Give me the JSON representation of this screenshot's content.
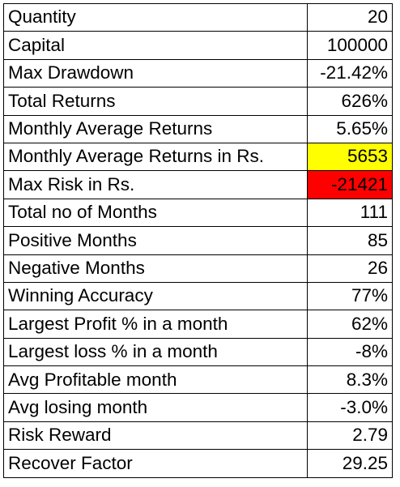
{
  "rows": [
    {
      "label": "Quantity",
      "value": "20",
      "highlight": null
    },
    {
      "label": "Capital",
      "value": "100000",
      "highlight": null
    },
    {
      "label": "Max Drawdown",
      "value": "-21.42%",
      "highlight": null
    },
    {
      "label": "Total Returns",
      "value": "626%",
      "highlight": null
    },
    {
      "label": "Monthly Average Returns",
      "value": "5.65%",
      "highlight": null
    },
    {
      "label": "Monthly Average Returns in Rs.",
      "value": "5653",
      "highlight": "#FFFF00"
    },
    {
      "label": "Max Risk in Rs.",
      "value": "-21421",
      "highlight": "#FF0000"
    },
    {
      "label": "Total no of Months",
      "value": "111",
      "highlight": null
    },
    {
      "label": "Positive Months",
      "value": "85",
      "highlight": null
    },
    {
      "label": "Negative Months",
      "value": "26",
      "highlight": null
    },
    {
      "label": "Winning Accuracy",
      "value": "77%",
      "highlight": null
    },
    {
      "label": "Largest Profit % in a month",
      "value": "62%",
      "highlight": null
    },
    {
      "label": "Largest loss % in a month",
      "value": "-8%",
      "highlight": null
    },
    {
      "label": "Avg Profitable month",
      "value": "8.3%",
      "highlight": null
    },
    {
      "label": "Avg losing month",
      "value": "-3.0%",
      "highlight": null
    },
    {
      "label": "Risk Reward",
      "value": "2.79",
      "highlight": null
    },
    {
      "label": "Recover Factor",
      "value": "29.25",
      "highlight": null
    }
  ]
}
